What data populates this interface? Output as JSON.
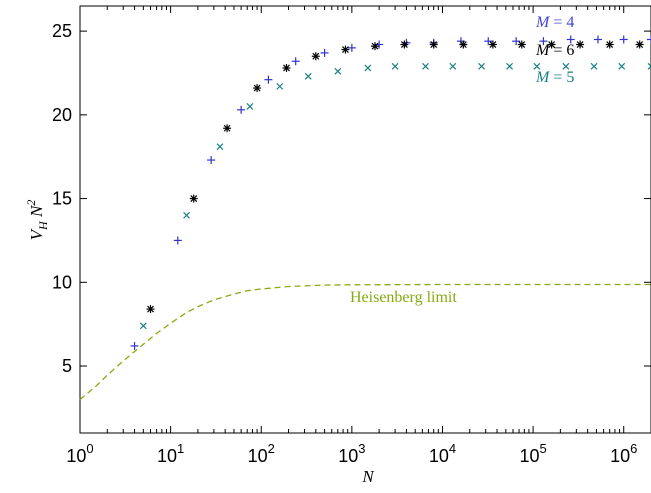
{
  "chart_data": {
    "type": "scatter",
    "xscale": "log",
    "xlim": [
      1,
      2000000
    ],
    "ylim": [
      1,
      26.5
    ],
    "xlabel": "N",
    "ylabel": "V_H N^2",
    "x_ticks": [
      {
        "value": 1,
        "base": "10",
        "exp": "0"
      },
      {
        "value": 10,
        "base": "10",
        "exp": "1"
      },
      {
        "value": 100,
        "base": "10",
        "exp": "2"
      },
      {
        "value": 1000,
        "base": "10",
        "exp": "3"
      },
      {
        "value": 10000,
        "base": "10",
        "exp": "4"
      },
      {
        "value": 100000,
        "base": "10",
        "exp": "5"
      },
      {
        "value": 1000000,
        "base": "10",
        "exp": "6"
      }
    ],
    "y_ticks": [
      5,
      10,
      15,
      20,
      25
    ],
    "grid": false,
    "series": [
      {
        "name": "M = 4",
        "marker": "plus",
        "color": "#3333cc",
        "x": [
          4,
          12,
          28,
          60,
          120,
          240,
          500,
          1000,
          2000,
          4000,
          8000,
          16000,
          32000,
          65000,
          130000,
          260000,
          520000,
          1000000,
          2000000
        ],
        "y": [
          6.2,
          12.5,
          17.3,
          20.3,
          22.1,
          23.2,
          23.7,
          24.0,
          24.2,
          24.3,
          24.3,
          24.4,
          24.4,
          24.4,
          24.4,
          24.5,
          24.5,
          24.5,
          24.5
        ]
      },
      {
        "name": "M = 5",
        "marker": "x",
        "color": "#1a8080",
        "x": [
          5,
          15,
          35,
          75,
          160,
          330,
          700,
          1500,
          3000,
          6500,
          13000,
          27000,
          55000,
          110000,
          230000,
          470000,
          950000,
          2000000
        ],
        "y": [
          7.4,
          14.0,
          18.1,
          20.5,
          21.7,
          22.3,
          22.6,
          22.8,
          22.9,
          22.9,
          22.9,
          22.9,
          22.9,
          22.9,
          22.9,
          22.9,
          22.9,
          22.9
        ]
      },
      {
        "name": "M = 6",
        "marker": "star",
        "color": "#000000",
        "x": [
          6,
          18,
          42,
          90,
          190,
          400,
          850,
          1800,
          3800,
          8000,
          17000,
          36000,
          75000,
          160000,
          330000,
          700000,
          1500000
        ],
        "y": [
          8.4,
          15.0,
          19.2,
          21.6,
          22.8,
          23.5,
          23.9,
          24.1,
          24.2,
          24.2,
          24.2,
          24.2,
          24.2,
          24.2,
          24.2,
          24.2,
          24.2
        ]
      },
      {
        "name": "Heisenberg limit",
        "marker": "dashed-line",
        "color": "#88aa11",
        "x": [
          1,
          1.5,
          2,
          3,
          5,
          7,
          10,
          15,
          20,
          30,
          50,
          70,
          100,
          200,
          500,
          1000,
          10000,
          100000,
          1000000,
          2000000
        ],
        "y": [
          3.0,
          3.8,
          4.45,
          5.3,
          6.3,
          6.95,
          7.55,
          8.2,
          8.55,
          8.95,
          9.3,
          9.5,
          9.6,
          9.75,
          9.83,
          9.85,
          9.87,
          9.87,
          9.87,
          9.87
        ]
      }
    ]
  },
  "annotations": {
    "m4": {
      "name": "M",
      "eq": " = 4"
    },
    "m6": {
      "name": "M",
      "eq": " = 6"
    },
    "m5": {
      "name": "M",
      "eq": " = 5"
    },
    "heisenberg": "Heisenberg limit"
  },
  "axis_text": {
    "xlabel": "N",
    "ylabel_base": "V",
    "ylabel_sub": "H",
    "ylabel_n": "N",
    "ylabel_sup": "2"
  }
}
